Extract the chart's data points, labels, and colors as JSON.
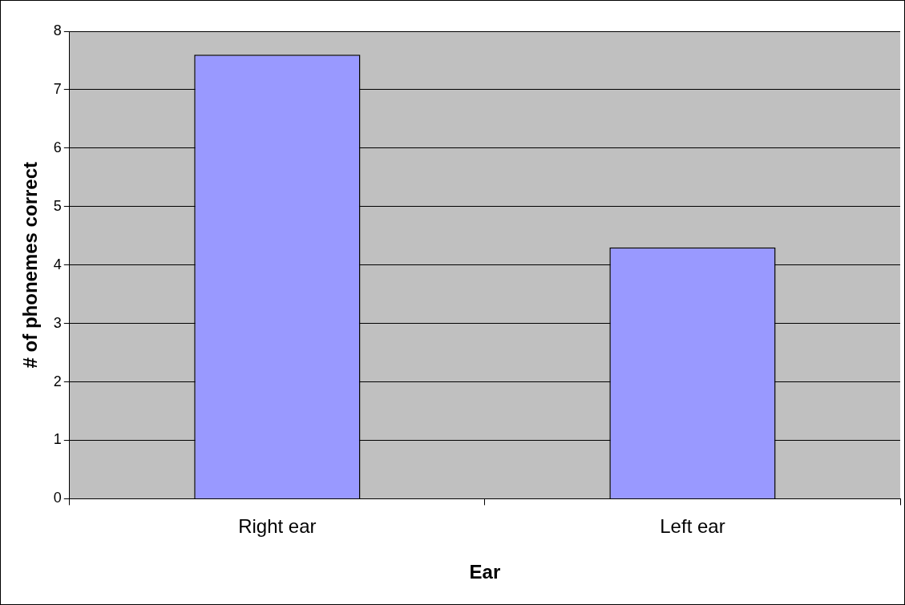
{
  "chart_data": {
    "type": "bar",
    "categories": [
      "Right ear",
      "Left ear"
    ],
    "values": [
      7.6,
      4.3
    ],
    "color": "#9999ff",
    "xlabel": "Ear",
    "ylabel": "# of phonemes correct",
    "ylim": [
      0,
      8
    ],
    "yticks": [
      0,
      1,
      2,
      3,
      4,
      5,
      6,
      7,
      8
    ],
    "grid": "y",
    "legend": false
  }
}
